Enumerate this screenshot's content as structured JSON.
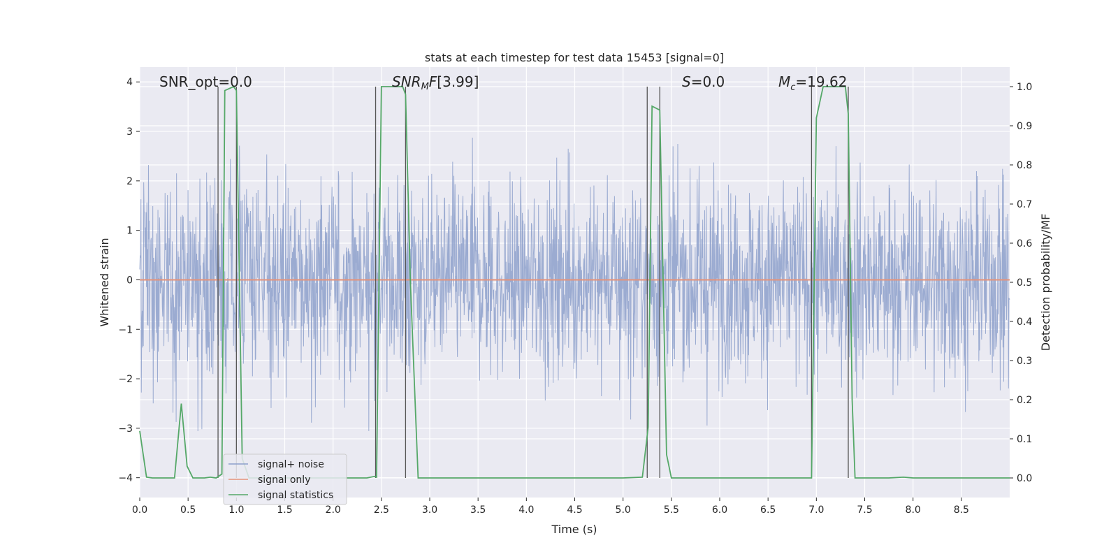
{
  "chart_data": {
    "type": "line",
    "title": "stats at each timestep for test data 15453 [signal=0]",
    "xlabel": "Time (s)",
    "ylabel_left": "Whitened strain",
    "ylabel_right": "Detection probability/MF",
    "xlim": [
      0.0,
      9.0
    ],
    "ylim_left": [
      -4.4,
      4.3
    ],
    "ylim_right": [
      -0.05,
      1.05
    ],
    "grid": true,
    "legend_location": "lower-left",
    "x_ticks": [
      "0.0",
      "0.5",
      "1.0",
      "1.5",
      "2.0",
      "2.5",
      "3.0",
      "3.5",
      "4.0",
      "4.5",
      "5.0",
      "5.5",
      "6.0",
      "6.5",
      "7.0",
      "7.5",
      "8.0",
      "8.5"
    ],
    "y_left_ticks": [
      "4",
      "3",
      "2",
      "1",
      "0",
      "−1",
      "−2",
      "−3",
      "−4"
    ],
    "y_right_ticks": [
      "1.0",
      "0.9",
      "0.8",
      "0.7",
      "0.6",
      "0.5",
      "0.4",
      "0.3",
      "0.2",
      "0.1",
      "0.0"
    ],
    "annotations": {
      "snr_opt": "SNR_opt=0.0",
      "snr_mf": "[3.99]",
      "s": "=0.0",
      "mc": "=19.62"
    },
    "series": [
      {
        "name": "signal+ noise",
        "color": "#8da0cb",
        "description": "whitened strain noise, roughly |y| <= 2.5 with spikes to ~4",
        "envelope": 2.2
      },
      {
        "name": "signal only",
        "color": "#e5937a",
        "x": [
          0.0,
          9.0
        ],
        "y": [
          0.0,
          0.0
        ]
      },
      {
        "name": "signal statistics",
        "color": "#55a868",
        "axis": "right",
        "x": [
          0.0,
          0.07,
          0.13,
          0.19,
          0.25,
          0.31,
          0.36,
          0.43,
          0.49,
          0.55,
          0.61,
          0.67,
          0.73,
          0.79,
          0.85,
          0.88,
          0.97,
          1.0,
          1.06,
          1.13,
          1.19,
          1.25,
          1.31,
          1.37,
          1.43,
          1.5,
          2.35,
          2.43,
          2.45,
          2.5,
          2.55,
          2.6,
          2.65,
          2.72,
          2.75,
          2.8,
          2.88,
          2.95,
          3.5,
          4.0,
          4.5,
          5.0,
          5.2,
          5.26,
          5.3,
          5.38,
          5.45,
          5.5,
          5.55,
          6.0,
          6.5,
          6.95,
          7.0,
          7.07,
          7.12,
          7.2,
          7.3,
          7.33,
          7.37,
          7.4,
          7.5,
          7.75,
          7.9,
          8.0,
          9.0
        ],
        "y": [
          0.12,
          0.002,
          0.0,
          0.0,
          0.0,
          0.0,
          0.0,
          0.19,
          0.03,
          0.0,
          0.0,
          0.0,
          0.002,
          0.0,
          0.01,
          0.99,
          1.0,
          0.99,
          0.05,
          0.0,
          0.0,
          0.0,
          0.0,
          0.0,
          0.0,
          0.0,
          0.0,
          0.004,
          0.002,
          1.0,
          1.0,
          1.0,
          1.0,
          1.0,
          0.98,
          0.5,
          0.0,
          0.0,
          0.0,
          0.0,
          0.0,
          0.0,
          0.002,
          0.13,
          0.95,
          0.94,
          0.06,
          0.0,
          0.0,
          0.0,
          0.0,
          0.0,
          0.92,
          1.0,
          1.0,
          1.0,
          1.0,
          0.93,
          0.2,
          0.0,
          0.0,
          0.0,
          0.002,
          0.0,
          0.0
        ]
      }
    ],
    "vertical_lines_x": [
      0.81,
      1.0,
      2.44,
      2.75,
      5.25,
      5.38,
      6.95,
      7.33
    ]
  },
  "legend": {
    "noise": "signal+ noise",
    "signal": "signal only",
    "stats": "signal statistics"
  }
}
